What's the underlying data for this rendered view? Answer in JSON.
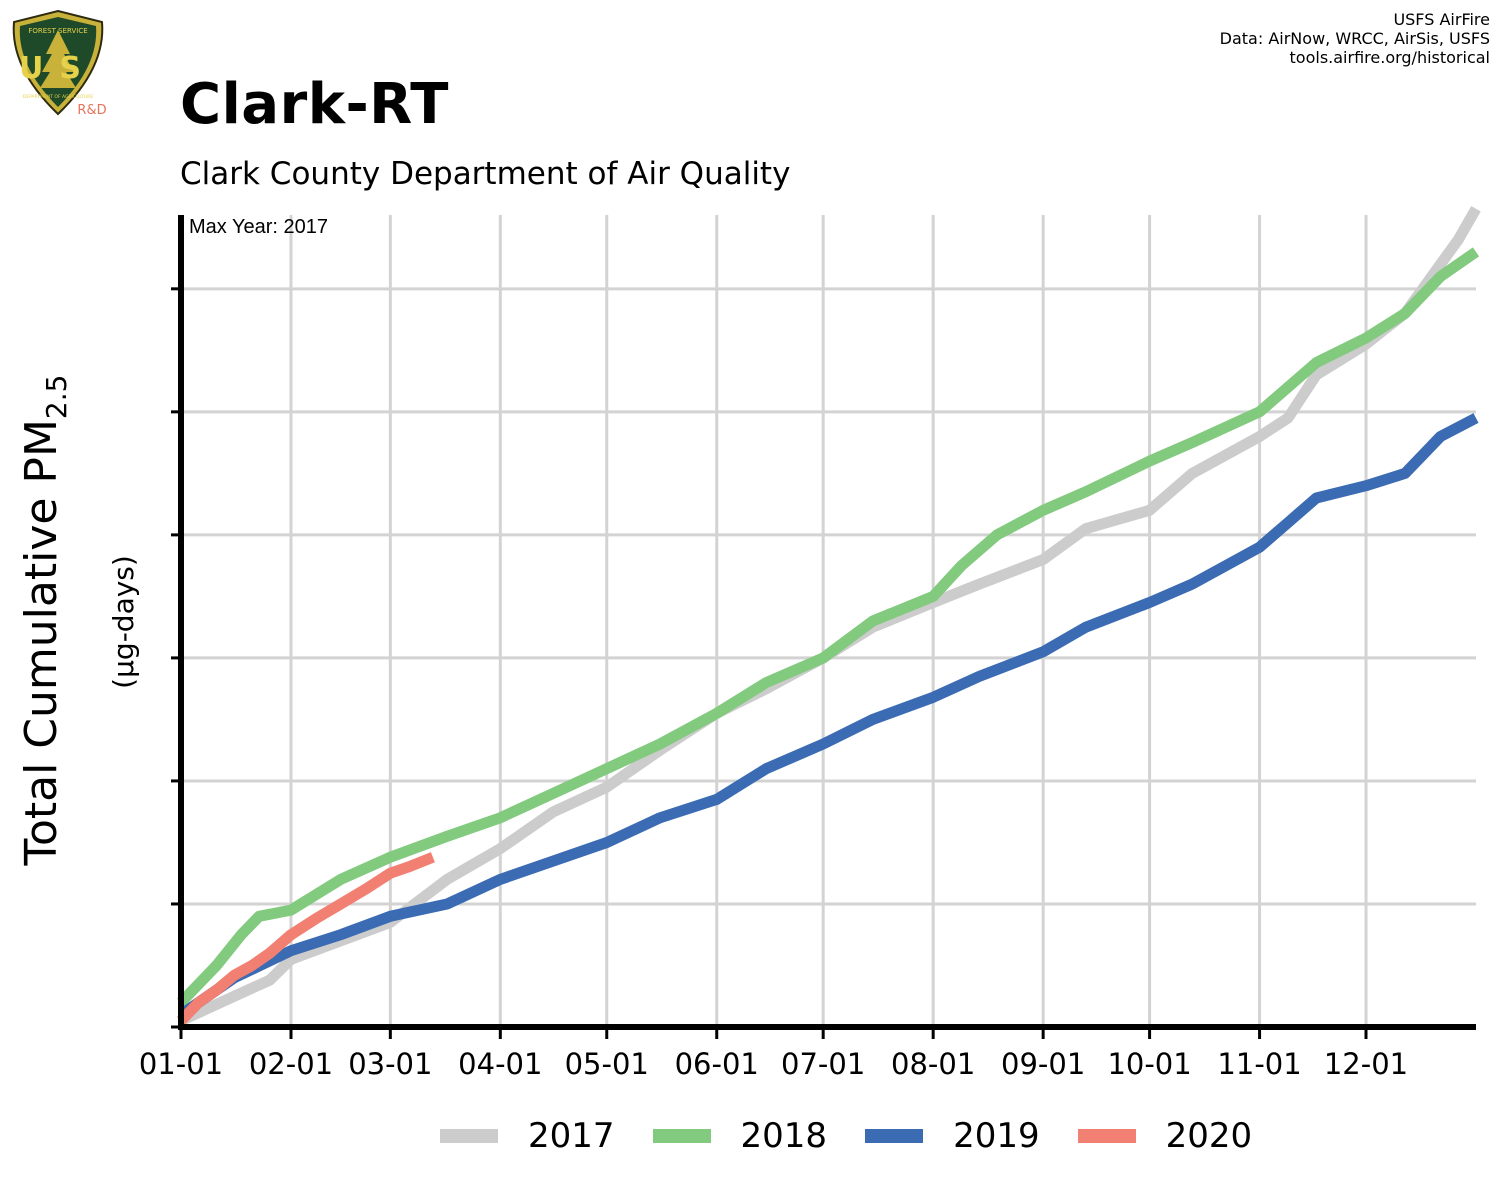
{
  "credits": [
    "USFS AirFire",
    "Data: AirNow, WRCC, AirSis, USFS",
    "tools.airfire.org/historical"
  ],
  "logo": {
    "text_top": "FOREST SERVICE",
    "text_main": "US",
    "text_bottom": "DEPARTMENT OF AGRICULTURE",
    "badge": "R&D",
    "icon": "forest-service-shield-icon"
  },
  "title": "Clark-RT",
  "subtitle": "Clark County Department of Air Quality",
  "chart_data": {
    "type": "line",
    "annotation": "Max Year: 2017",
    "ylabel_main": "Total Cumulative PM",
    "ylabel_sub": "2.5",
    "ylabel_units": "(µg-days)",
    "x_tick_labels": [
      "01-01",
      "02-01",
      "03-01",
      "04-01",
      "05-01",
      "06-01",
      "07-01",
      "08-01",
      "09-01",
      "10-01",
      "11-01",
      "12-01"
    ],
    "x_tick_days": [
      0,
      31,
      59,
      90,
      120,
      151,
      181,
      212,
      243,
      273,
      304,
      334
    ],
    "xlim": [
      0,
      365
    ],
    "ylim": [
      0,
      6.6
    ],
    "y_ticks": [
      0,
      1,
      2,
      3,
      4,
      5,
      6
    ],
    "grid": true,
    "legend_position": "bottom",
    "series": [
      {
        "name": "2017",
        "color": "#cccccc",
        "x": [
          0,
          15,
          25,
          31,
          45,
          59,
          75,
          90,
          105,
          120,
          135,
          151,
          165,
          181,
          195,
          212,
          225,
          243,
          255,
          273,
          285,
          304,
          312,
          320,
          334,
          345,
          360,
          365
        ],
        "y": [
          0.05,
          0.25,
          0.38,
          0.55,
          0.7,
          0.85,
          1.2,
          1.45,
          1.75,
          1.95,
          2.25,
          2.55,
          2.75,
          3.0,
          3.25,
          3.45,
          3.6,
          3.8,
          4.05,
          4.2,
          4.5,
          4.8,
          4.95,
          5.3,
          5.55,
          5.8,
          6.4,
          6.65
        ]
      },
      {
        "name": "2018",
        "color": "#82ca7e",
        "x": [
          0,
          10,
          17,
          22,
          31,
          45,
          59,
          75,
          90,
          105,
          120,
          135,
          151,
          165,
          181,
          195,
          212,
          220,
          230,
          243,
          255,
          273,
          285,
          304,
          312,
          320,
          334,
          345,
          355,
          365
        ],
        "y": [
          0.2,
          0.5,
          0.75,
          0.9,
          0.95,
          1.2,
          1.38,
          1.55,
          1.7,
          1.9,
          2.1,
          2.3,
          2.55,
          2.8,
          3.0,
          3.3,
          3.5,
          3.75,
          4.0,
          4.2,
          4.35,
          4.6,
          4.75,
          5.0,
          5.2,
          5.4,
          5.6,
          5.8,
          6.1,
          6.3
        ]
      },
      {
        "name": "2019",
        "color": "#3a6bb3",
        "x": [
          0,
          15,
          31,
          45,
          59,
          75,
          90,
          105,
          120,
          135,
          151,
          165,
          181,
          195,
          212,
          225,
          243,
          255,
          273,
          285,
          304,
          312,
          320,
          334,
          345,
          355,
          365
        ],
        "y": [
          0.1,
          0.4,
          0.62,
          0.75,
          0.9,
          1.0,
          1.2,
          1.35,
          1.5,
          1.7,
          1.85,
          2.1,
          2.3,
          2.5,
          2.68,
          2.85,
          3.05,
          3.25,
          3.45,
          3.6,
          3.9,
          4.1,
          4.3,
          4.4,
          4.5,
          4.8,
          4.95
        ]
      },
      {
        "name": "2020",
        "color": "#f28072",
        "x": [
          0,
          5,
          10,
          15,
          20,
          25,
          31,
          38,
          45,
          52,
          59,
          64,
          71
        ],
        "y": [
          0.05,
          0.2,
          0.3,
          0.42,
          0.5,
          0.6,
          0.75,
          0.88,
          1.0,
          1.12,
          1.25,
          1.3,
          1.38
        ]
      }
    ]
  }
}
